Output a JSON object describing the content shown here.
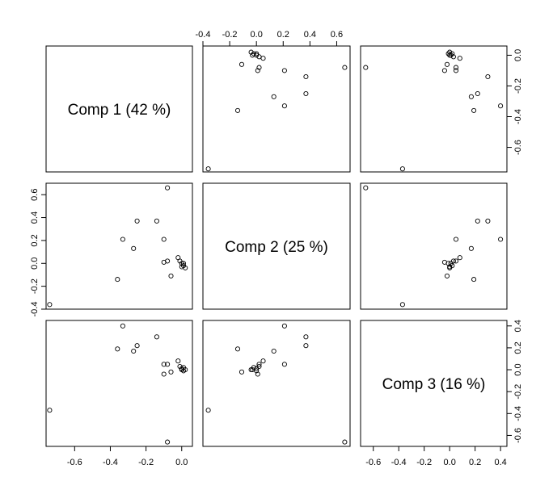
{
  "chart_data": {
    "type": "scatter",
    "variables": [
      {
        "name": "Comp 1",
        "label": "Comp 1 (42 %)",
        "range": [
          -0.76,
          0.06
        ],
        "ticks": [
          -0.6,
          -0.4,
          -0.2,
          0.0
        ],
        "tick_labels": [
          "-0.6",
          "-0.4",
          "-0.2",
          "0.0"
        ]
      },
      {
        "name": "Comp 2",
        "label": "Comp 2 (25 %)",
        "range": [
          -0.4,
          0.7
        ],
        "ticks": [
          -0.4,
          -0.2,
          0.0,
          0.2,
          0.4,
          0.6
        ],
        "tick_labels": [
          "-0.4",
          "-0.2",
          "0.0",
          "0.2",
          "0.4",
          "0.6"
        ]
      },
      {
        "name": "Comp 3",
        "label": "Comp 3 (16 %)",
        "range": [
          -0.7,
          0.45
        ],
        "ticks": [
          -0.6,
          -0.4,
          -0.2,
          0.0,
          0.2,
          0.4
        ],
        "tick_labels": [
          "-0.6",
          "-0.4",
          "-0.2",
          "0.0",
          "0.2",
          "0.4"
        ]
      }
    ],
    "points": [
      {
        "c1": -0.74,
        "c2": -0.36,
        "c3": -0.37
      },
      {
        "c1": -0.08,
        "c2": 0.66,
        "c3": -0.66
      },
      {
        "c1": -0.36,
        "c2": -0.14,
        "c3": 0.19
      },
      {
        "c1": -0.33,
        "c2": 0.21,
        "c3": 0.4
      },
      {
        "c1": -0.27,
        "c2": 0.13,
        "c3": 0.17
      },
      {
        "c1": -0.25,
        "c2": 0.37,
        "c3": 0.22
      },
      {
        "c1": -0.14,
        "c2": 0.37,
        "c3": 0.3
      },
      {
        "c1": -0.1,
        "c2": 0.21,
        "c3": 0.05
      },
      {
        "c1": -0.1,
        "c2": 0.01,
        "c3": -0.04
      },
      {
        "c1": -0.08,
        "c2": 0.02,
        "c3": 0.05
      },
      {
        "c1": -0.06,
        "c2": -0.11,
        "c3": -0.02
      },
      {
        "c1": -0.02,
        "c2": 0.05,
        "c3": 0.08
      },
      {
        "c1": -0.01,
        "c2": 0.02,
        "c3": 0.03
      },
      {
        "c1": 0.0,
        "c2": 0.0,
        "c3": 0.01
      },
      {
        "c1": 0.0,
        "c2": -0.03,
        "c3": 0.0
      },
      {
        "c1": 0.01,
        "c2": 0.0,
        "c3": -0.01
      },
      {
        "c1": 0.01,
        "c2": -0.02,
        "c3": 0.02
      },
      {
        "c1": 0.02,
        "c2": -0.04,
        "c3": 0.0
      }
    ],
    "grid": false,
    "legend": "none"
  }
}
